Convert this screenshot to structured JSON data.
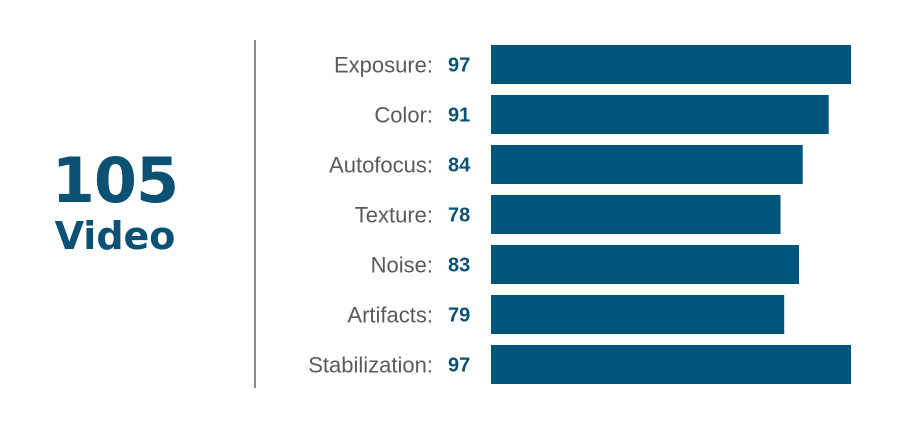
{
  "score": {
    "value": "105",
    "label": "Video"
  },
  "colors": {
    "bar": "#02557a",
    "value_text": "#0b5173",
    "label_text": "#5b5b5b",
    "divider": "#8a8a8a"
  },
  "chart_data": {
    "type": "bar",
    "orientation": "horizontal",
    "categories": [
      "Exposure:",
      "Color:",
      "Autofocus:",
      "Texture:",
      "Noise:",
      "Artifacts:",
      "Stabilization:"
    ],
    "values": [
      97,
      91,
      84,
      78,
      83,
      79,
      97
    ],
    "value_labels": [
      "97",
      "91",
      "84",
      "78",
      "83",
      "79",
      "97"
    ],
    "title": "",
    "xlabel": "",
    "ylabel": "",
    "grid": false
  }
}
